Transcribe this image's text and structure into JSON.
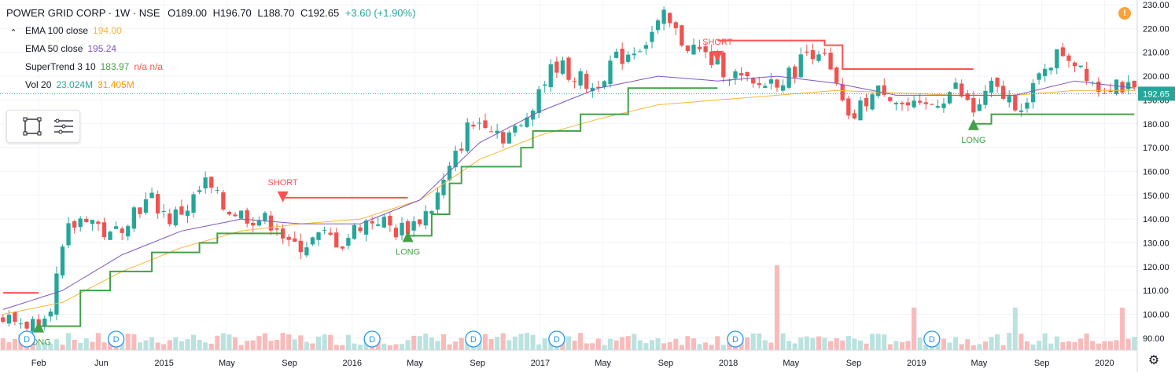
{
  "header": {
    "symbol": "POWER GRID CORP · 1W · NSE",
    "open": "O189.00",
    "high": "H196.70",
    "low": "L188.70",
    "close": "C192.65",
    "change": "+3.60 (+1.90%)"
  },
  "indicators": [
    {
      "label": "EMA 100 close",
      "value": "194.00",
      "value2": "",
      "color": "#f9b637"
    },
    {
      "label": "EMA 50 close",
      "value": "195.24",
      "value2": "",
      "color": "#7e57c2"
    },
    {
      "label": "SuperTrend 3 10",
      "value": "183.97",
      "value2": "n/a n/a",
      "color": "#43a047"
    },
    {
      "label": "Vol 20",
      "value": "23.024M",
      "value2": "31.405M",
      "color": "#26a69a"
    }
  ],
  "colors": {
    "up": "#26a69a",
    "down": "#ef5350",
    "ema100": "#f9b637",
    "ema50": "#7e57c2",
    "st_up": "#43a047",
    "st_down": "#ff5252",
    "price_tag": "#26a69a"
  },
  "icons": {
    "collapse": "chevron-up-icon",
    "alert": "info-icon",
    "settings": "gear-icon",
    "toolbox": [
      "rectangle-tool-icon",
      "lines-menu-icon"
    ]
  },
  "chart_data": {
    "type": "candlestick",
    "x_tick_labels": [
      "Feb",
      "Jun",
      "2015",
      "May",
      "Sep",
      "2016",
      "May",
      "Sep",
      "2017",
      "May",
      "Sep",
      "2018",
      "May",
      "Sep",
      "2019",
      "May",
      "Sep",
      "2020"
    ],
    "y_tick_labels": [
      "90.00",
      "100.00",
      "110.00",
      "120.00",
      "130.00",
      "140.00",
      "150.00",
      "160.00",
      "170.00",
      "180.00",
      "190.00",
      "200.00",
      "210.00",
      "220.00",
      "230.00"
    ],
    "ylim": [
      85,
      232
    ],
    "last_price": "192.65",
    "approx_close_path": [
      [
        0,
        98
      ],
      [
        5,
        96
      ],
      [
        8,
        105
      ],
      [
        11,
        135
      ],
      [
        14,
        142
      ],
      [
        18,
        132
      ],
      [
        22,
        144
      ],
      [
        25,
        148
      ],
      [
        28,
        140
      ],
      [
        31,
        145
      ],
      [
        34,
        155
      ],
      [
        37,
        145
      ],
      [
        40,
        142
      ],
      [
        43,
        140
      ],
      [
        46,
        138
      ],
      [
        48,
        128
      ],
      [
        51,
        130
      ],
      [
        54,
        133
      ],
      [
        57,
        130
      ],
      [
        60,
        138
      ],
      [
        63,
        140
      ],
      [
        66,
        135
      ],
      [
        69,
        138
      ],
      [
        72,
        145
      ],
      [
        75,
        160
      ],
      [
        78,
        178
      ],
      [
        81,
        182
      ],
      [
        84,
        175
      ],
      [
        87,
        178
      ],
      [
        90,
        195
      ],
      [
        93,
        205
      ],
      [
        96,
        200
      ],
      [
        99,
        195
      ],
      [
        102,
        205
      ],
      [
        105,
        210
      ],
      [
        108,
        215
      ],
      [
        111,
        224
      ],
      [
        114,
        215
      ],
      [
        117,
        210
      ],
      [
        120,
        205
      ],
      [
        123,
        200
      ],
      [
        126,
        195
      ],
      [
        129,
        198
      ],
      [
        132,
        200
      ],
      [
        135,
        210
      ],
      [
        137,
        212
      ],
      [
        140,
        195
      ],
      [
        142,
        180
      ],
      [
        145,
        190
      ],
      [
        148,
        195
      ],
      [
        151,
        188
      ],
      [
        154,
        185
      ],
      [
        157,
        190
      ],
      [
        160,
        195
      ],
      [
        163,
        185
      ],
      [
        166,
        195
      ],
      [
        169,
        190
      ],
      [
        172,
        188
      ],
      [
        175,
        205
      ],
      [
        178,
        210
      ],
      [
        181,
        205
      ],
      [
        184,
        195
      ],
      [
        187,
        198
      ],
      [
        190,
        192
      ]
    ],
    "approx_ema100": [
      [
        0,
        100
      ],
      [
        10,
        105
      ],
      [
        20,
        118
      ],
      [
        30,
        128
      ],
      [
        40,
        135
      ],
      [
        50,
        138
      ],
      [
        60,
        140
      ],
      [
        70,
        148
      ],
      [
        80,
        165
      ],
      [
        90,
        175
      ],
      [
        100,
        182
      ],
      [
        110,
        188
      ],
      [
        120,
        190
      ],
      [
        130,
        192
      ],
      [
        140,
        194
      ],
      [
        150,
        193
      ],
      [
        160,
        192
      ],
      [
        170,
        192
      ],
      [
        180,
        194
      ],
      [
        190,
        194
      ]
    ],
    "approx_ema50": [
      [
        0,
        102
      ],
      [
        10,
        110
      ],
      [
        20,
        125
      ],
      [
        30,
        135
      ],
      [
        40,
        140
      ],
      [
        50,
        138
      ],
      [
        60,
        138
      ],
      [
        70,
        148
      ],
      [
        80,
        172
      ],
      [
        90,
        185
      ],
      [
        100,
        195
      ],
      [
        110,
        200
      ],
      [
        120,
        198
      ],
      [
        130,
        200
      ],
      [
        140,
        197
      ],
      [
        150,
        192
      ],
      [
        160,
        192
      ],
      [
        170,
        192
      ],
      [
        180,
        198
      ],
      [
        190,
        195
      ]
    ],
    "supertrend_segments": [
      {
        "dir": "down",
        "points": [
          [
            0,
            109
          ],
          [
            6,
            109
          ]
        ]
      },
      {
        "dir": "up",
        "points": [
          [
            6,
            95
          ],
          [
            12,
            95
          ],
          [
            13,
            110
          ],
          [
            17,
            110
          ],
          [
            18,
            118
          ],
          [
            24,
            118
          ],
          [
            25,
            126
          ],
          [
            31,
            126
          ],
          [
            33,
            130
          ],
          [
            36,
            134
          ],
          [
            47,
            134
          ]
        ]
      },
      {
        "dir": "down",
        "points": [
          [
            47,
            149
          ],
          [
            68,
            149
          ]
        ]
      },
      {
        "dir": "up",
        "points": [
          [
            68,
            133
          ],
          [
            72,
            142
          ],
          [
            75,
            155
          ],
          [
            77,
            162
          ],
          [
            85,
            162
          ],
          [
            87,
            170
          ],
          [
            89,
            177
          ],
          [
            94,
            177
          ],
          [
            97,
            184
          ],
          [
            102,
            184
          ],
          [
            105,
            195
          ],
          [
            115,
            195
          ],
          [
            120,
            195
          ]
        ]
      },
      {
        "dir": "down",
        "points": [
          [
            120,
            215
          ],
          [
            138,
            213
          ],
          [
            141,
            203
          ],
          [
            163,
            203
          ]
        ]
      },
      {
        "dir": "up",
        "points": [
          [
            163,
            180
          ],
          [
            166,
            184
          ],
          [
            190,
            184
          ]
        ]
      }
    ],
    "signals": [
      {
        "type": "LONG",
        "x": 6,
        "price": 95,
        "label": "LONG"
      },
      {
        "type": "SHORT",
        "x": 47,
        "price": 149,
        "label": "SHORT"
      },
      {
        "type": "LONG",
        "x": 68,
        "price": 133,
        "label": "LONG"
      },
      {
        "type": "SHORT",
        "x": 120,
        "price": 208,
        "label": "SHORT"
      },
      {
        "type": "LONG",
        "x": 163,
        "price": 180,
        "label": "LONG"
      }
    ],
    "dividend_markers": [
      4,
      19,
      62,
      79,
      93,
      123,
      156
    ],
    "volume_spikes": [
      {
        "x": 130,
        "height": 0.9
      },
      {
        "x": 153,
        "height": 0.45
      },
      {
        "x": 170,
        "height": 0.45
      },
      {
        "x": 188,
        "height": 0.45
      }
    ],
    "num_bars": 191
  }
}
